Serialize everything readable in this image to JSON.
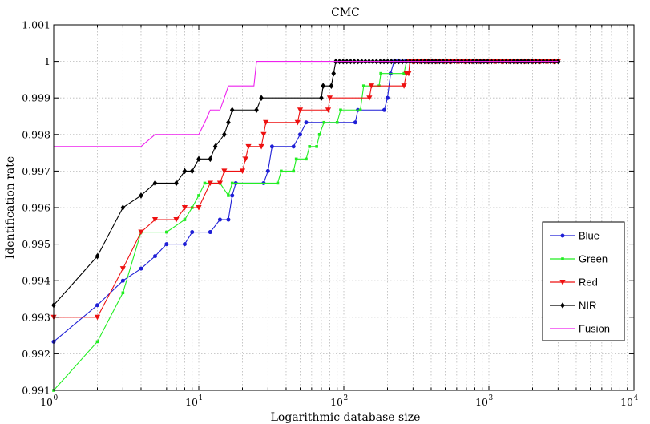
{
  "chart_data": {
    "type": "line",
    "title": "CMC",
    "xlabel": "Logarithmic database size",
    "ylabel": "Identification rate",
    "x_scale": "log",
    "xlim": [
      1,
      10000
    ],
    "ylim": [
      0.991,
      1.001
    ],
    "grid": true,
    "legend_position": "right",
    "x_ticks": [
      {
        "value": 1,
        "base": "10",
        "exp": "0"
      },
      {
        "value": 10,
        "base": "10",
        "exp": "1"
      },
      {
        "value": 100,
        "base": "10",
        "exp": "2"
      },
      {
        "value": 1000,
        "base": "10",
        "exp": "3"
      },
      {
        "value": 10000,
        "base": "10",
        "exp": "4"
      }
    ],
    "y_ticks": [
      {
        "value": 0.991,
        "label": "0.991"
      },
      {
        "value": 0.992,
        "label": "0.992"
      },
      {
        "value": 0.993,
        "label": "0.993"
      },
      {
        "value": 0.994,
        "label": "0.994"
      },
      {
        "value": 0.995,
        "label": "0.995"
      },
      {
        "value": 0.996,
        "label": "0.996"
      },
      {
        "value": 0.997,
        "label": "0.997"
      },
      {
        "value": 0.998,
        "label": "0.998"
      },
      {
        "value": 0.999,
        "label": "0.999"
      },
      {
        "value": 1.0,
        "label": "1"
      },
      {
        "value": 1.001,
        "label": "1.001"
      }
    ],
    "series": [
      {
        "name": "Blue",
        "color": "#1f1fd6",
        "marker": "dot",
        "points": [
          [
            1,
            0.99233
          ],
          [
            2,
            0.99333
          ],
          [
            3,
            0.994
          ],
          [
            4,
            0.99433
          ],
          [
            5,
            0.99467
          ],
          [
            6,
            0.995
          ],
          [
            8,
            0.995
          ],
          [
            9,
            0.99533
          ],
          [
            12,
            0.99533
          ],
          [
            14,
            0.99567
          ],
          [
            16,
            0.99567
          ],
          [
            17,
            0.99633
          ],
          [
            18,
            0.99667
          ],
          [
            28,
            0.99667
          ],
          [
            30,
            0.997
          ],
          [
            32,
            0.99767
          ],
          [
            45,
            0.99767
          ],
          [
            50,
            0.998
          ],
          [
            55,
            0.99833
          ],
          [
            120,
            0.99833
          ],
          [
            125,
            0.99867
          ],
          [
            190,
            0.99867
          ],
          [
            200,
            0.999
          ],
          [
            210,
            0.99967
          ],
          [
            222,
            1.0
          ],
          [
            3000,
            1.0
          ]
        ]
      },
      {
        "name": "Green",
        "color": "#22ee22",
        "marker": "square",
        "points": [
          [
            1,
            0.991
          ],
          [
            2,
            0.99233
          ],
          [
            3,
            0.99367
          ],
          [
            4,
            0.99533
          ],
          [
            6,
            0.99533
          ],
          [
            8,
            0.99567
          ],
          [
            9,
            0.996
          ],
          [
            10,
            0.99633
          ],
          [
            11,
            0.99667
          ],
          [
            14,
            0.99667
          ],
          [
            16,
            0.99633
          ],
          [
            17,
            0.99667
          ],
          [
            35,
            0.99667
          ],
          [
            37,
            0.997
          ],
          [
            45,
            0.997
          ],
          [
            47,
            0.99733
          ],
          [
            55,
            0.99733
          ],
          [
            58,
            0.99767
          ],
          [
            65,
            0.99767
          ],
          [
            68,
            0.998
          ],
          [
            73,
            0.99833
          ],
          [
            90,
            0.99833
          ],
          [
            95,
            0.99867
          ],
          [
            130,
            0.99867
          ],
          [
            137,
            0.99933
          ],
          [
            175,
            0.99933
          ],
          [
            180,
            0.99967
          ],
          [
            260,
            0.99967
          ],
          [
            270,
            1.0
          ],
          [
            3000,
            1.0
          ]
        ]
      },
      {
        "name": "Red",
        "color": "#ee1111",
        "marker": "triangle-down",
        "points": [
          [
            1,
            0.993
          ],
          [
            2,
            0.993
          ],
          [
            3,
            0.99433
          ],
          [
            4,
            0.99533
          ],
          [
            5,
            0.99567
          ],
          [
            7,
            0.99567
          ],
          [
            8,
            0.996
          ],
          [
            10,
            0.996
          ],
          [
            12,
            0.99667
          ],
          [
            14,
            0.99667
          ],
          [
            15,
            0.997
          ],
          [
            20,
            0.997
          ],
          [
            21,
            0.99733
          ],
          [
            22,
            0.99767
          ],
          [
            27,
            0.99767
          ],
          [
            28,
            0.998
          ],
          [
            29,
            0.99833
          ],
          [
            48,
            0.99833
          ],
          [
            50,
            0.99867
          ],
          [
            78,
            0.99867
          ],
          [
            80,
            0.999
          ],
          [
            150,
            0.999
          ],
          [
            155,
            0.99933
          ],
          [
            260,
            0.99933
          ],
          [
            270,
            0.99967
          ],
          [
            280,
            0.99967
          ],
          [
            285,
            1.0
          ],
          [
            3000,
            1.0
          ]
        ]
      },
      {
        "name": "NIR",
        "color": "#000000",
        "marker": "diamond",
        "points": [
          [
            1,
            0.99333
          ],
          [
            2,
            0.99467
          ],
          [
            3,
            0.996
          ],
          [
            4,
            0.99633
          ],
          [
            5,
            0.99667
          ],
          [
            7,
            0.99667
          ],
          [
            8,
            0.997
          ],
          [
            9,
            0.997
          ],
          [
            10,
            0.99733
          ],
          [
            12,
            0.99733
          ],
          [
            13,
            0.99767
          ],
          [
            15,
            0.998
          ],
          [
            16,
            0.99833
          ],
          [
            17,
            0.99867
          ],
          [
            25,
            0.99867
          ],
          [
            27,
            0.999
          ],
          [
            70,
            0.999
          ],
          [
            72,
            0.99933
          ],
          [
            82,
            0.99933
          ],
          [
            85,
            0.99967
          ],
          [
            88,
            1.0
          ],
          [
            3000,
            1.0
          ]
        ]
      },
      {
        "name": "Fusion",
        "color": "#ee22ee",
        "marker": "none",
        "points": [
          [
            1,
            0.99767
          ],
          [
            4,
            0.99767
          ],
          [
            5,
            0.998
          ],
          [
            10,
            0.998
          ],
          [
            11,
            0.99833
          ],
          [
            12,
            0.99867
          ],
          [
            14,
            0.99867
          ],
          [
            15,
            0.999
          ],
          [
            16,
            0.99933
          ],
          [
            18,
            0.99933
          ],
          [
            24,
            0.99933
          ],
          [
            25,
            1.0
          ],
          [
            3000,
            1.0
          ]
        ]
      }
    ]
  }
}
